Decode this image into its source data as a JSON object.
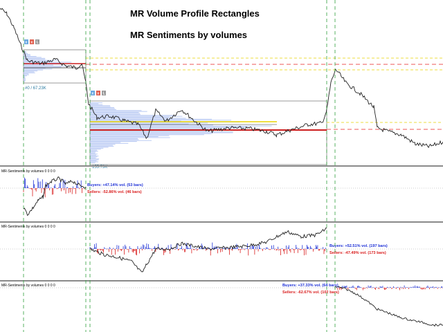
{
  "titles": {
    "line1": "MR Volume Profile Rectangles",
    "line2": "MR Sentiments by volumes"
  },
  "rect1": {
    "volume_label": "#0 / 67.23K",
    "buttons": [
      "x",
      "x",
      "L"
    ]
  },
  "rect2": {
    "volume_label": "155.73K",
    "buttons": [
      "x",
      "x",
      "L"
    ]
  },
  "indicators": [
    {
      "label": "MR-Sentiments by volumes 0 0 0 0",
      "buyers": "Buyers: +47.14% vol. (53 bars)",
      "sellers": "Sellers: -52.86% vol. (46 bars)"
    },
    {
      "label": "MR-Sentiments by volumes 0 0 0 0",
      "buyers": "Buyers: +52.51% vol. (197 bars)",
      "sellers": "Sellers: -47.49% vol. (173 bars)"
    },
    {
      "label": "MR-Sentiments by volumes 0 0 0 0",
      "buyers": "Buyers: +37.33% vol. (64 bars)",
      "sellers": "Sellers: -62.67% vol. (102 bars)"
    }
  ],
  "colors": {
    "price": "#222222",
    "vline": "#2e9e3a",
    "poc_red": "#cc1f1f",
    "level_yellow": "#e8d400",
    "level_red_dashed": "#ee5555",
    "profile_blue": "#a9bdf0",
    "buyers": "#1c2fd6",
    "sellers": "#d91c1c",
    "btn_blue": "#6aa8e0",
    "btn_red": "#e06050",
    "btn_gray": "#9a9a9a"
  }
}
